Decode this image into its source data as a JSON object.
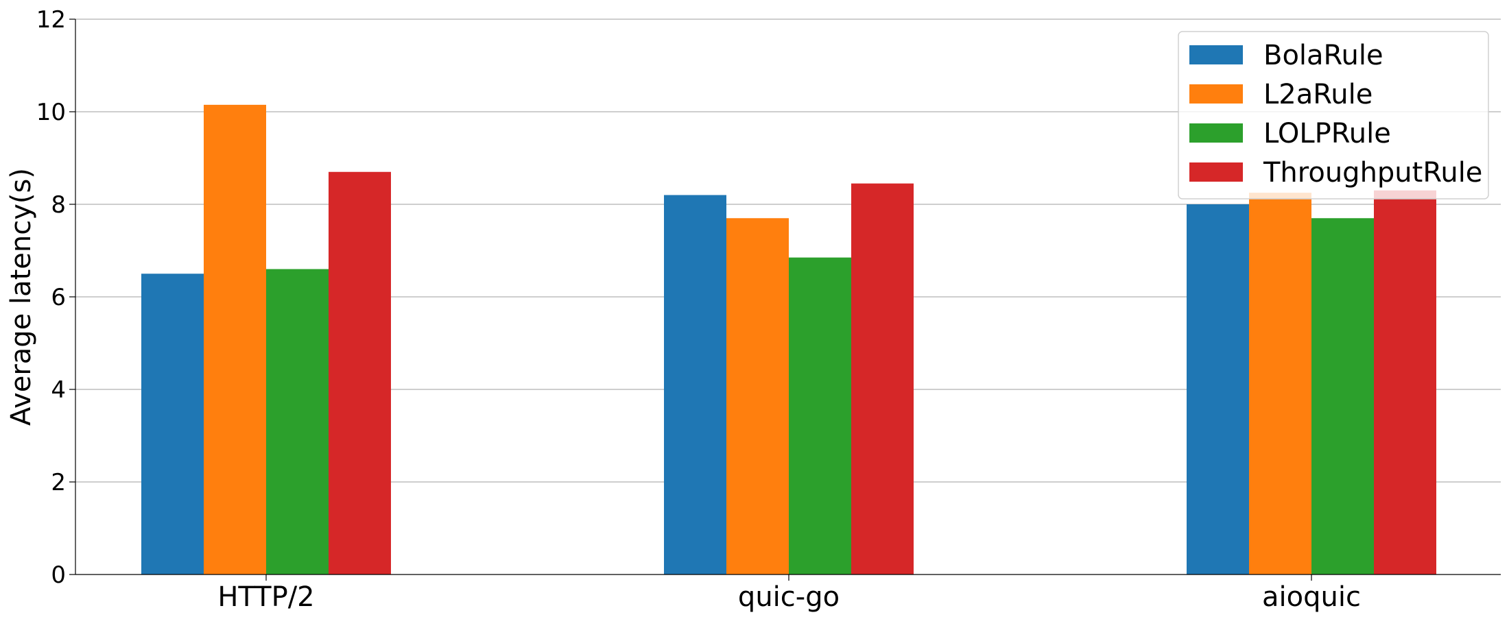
{
  "chart_data": {
    "type": "bar",
    "title": "",
    "xlabel": "",
    "ylabel": "Average latency(s)",
    "categories": [
      "HTTP/2",
      "quic-go",
      "aioquic"
    ],
    "series": [
      {
        "name": "BolaRule",
        "color": "#1f77b4",
        "values": [
          6.5,
          8.2,
          8.0
        ]
      },
      {
        "name": "L2aRule",
        "color": "#ff7f0e",
        "values": [
          10.15,
          7.7,
          8.25
        ]
      },
      {
        "name": "LOLPRule",
        "color": "#2ca02c",
        "values": [
          6.6,
          6.85,
          7.7
        ]
      },
      {
        "name": "ThroughputRule",
        "color": "#d62728",
        "values": [
          8.7,
          8.45,
          8.3
        ]
      }
    ],
    "ylim": [
      0,
      12
    ],
    "yticks": [
      "0",
      "2",
      "4",
      "6",
      "8",
      "10",
      "12"
    ],
    "grid": "horizontal",
    "legend_position": "top-right"
  }
}
